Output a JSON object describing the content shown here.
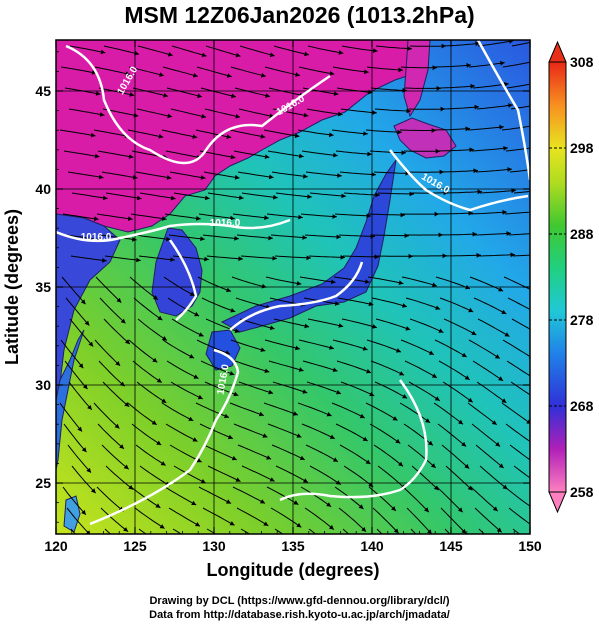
{
  "title": "MSM 12Z06Jan2026 (1013.2hPa)",
  "axes": {
    "xlabel": "Longitude (degrees)",
    "ylabel": "Latitude  (degrees)",
    "x_ticks": [
      "120",
      "125",
      "130",
      "135",
      "140",
      "145",
      "150"
    ],
    "y_ticks": [
      "25",
      "30",
      "35",
      "40",
      "45"
    ],
    "xlim": [
      120,
      150
    ],
    "ylim": [
      22.4,
      47.6
    ]
  },
  "colorbar": {
    "ticks": [
      "258",
      "268",
      "278",
      "288",
      "298",
      "308"
    ],
    "range": [
      258,
      308
    ],
    "colors": [
      "#ff80c0",
      "#e010a0",
      "#9020c8",
      "#3030d8",
      "#2070e8",
      "#20b8e0",
      "#20d090",
      "#30c840",
      "#a0d820",
      "#e8e820",
      "#f8a020",
      "#e82818"
    ]
  },
  "contour_labels": [
    "1016.0",
    "1016.0",
    "1016.0",
    "1016.0",
    "1016.0",
    "1016.0"
  ],
  "credits": {
    "line1": "Drawing by DCL (https://www.gfd-dennou.org/library/dcl/)",
    "line2": "Data from http://database.rish.kyoto-u.ac.jp/arch/jmadata/"
  },
  "chart_data": {
    "type": "heatmap",
    "title": "MSM 12Z06Jan2026 (1013.2hPa)",
    "xlabel": "Longitude (degrees)",
    "ylabel": "Latitude  (degrees)",
    "xlim": [
      120,
      150
    ],
    "ylim": [
      22.4,
      47.6
    ],
    "x_ticks": [
      120,
      125,
      130,
      135,
      140,
      145,
      150
    ],
    "y_ticks": [
      25,
      30,
      35,
      40,
      45
    ],
    "color_scale": {
      "min": 258,
      "max": 308,
      "ticks": [
        258,
        268,
        278,
        288,
        298,
        308
      ]
    },
    "grid": true,
    "overlays": [
      "streamlines",
      "contour 1016.0"
    ]
  }
}
